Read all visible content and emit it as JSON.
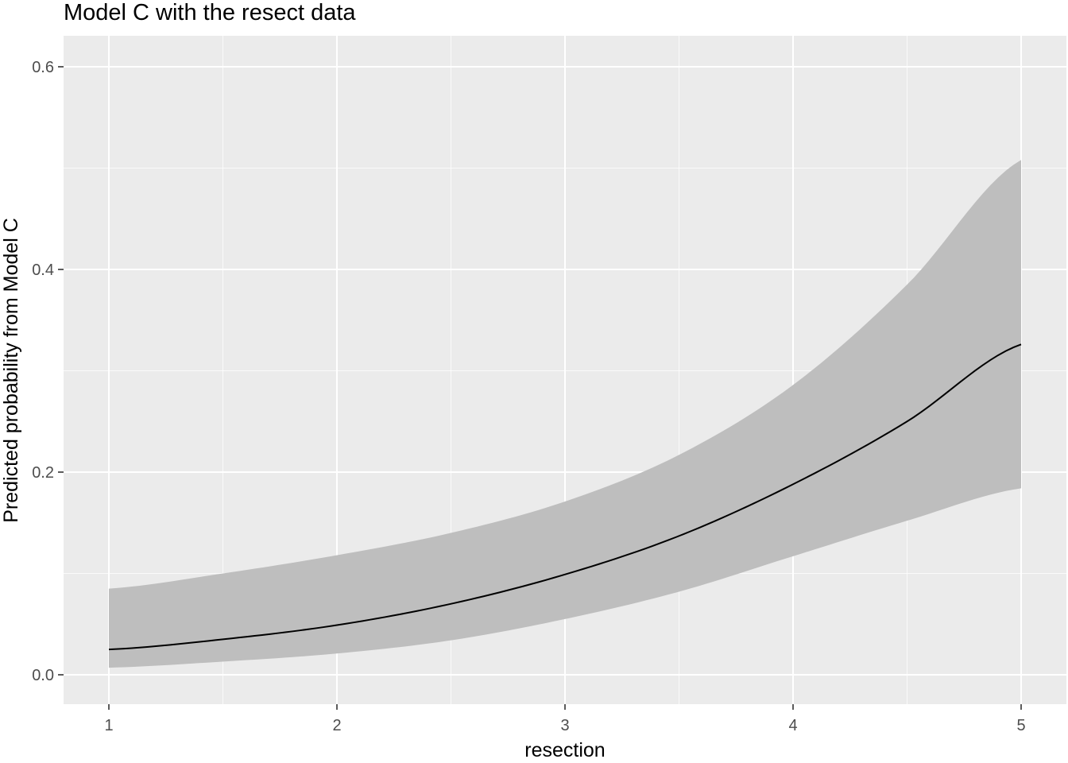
{
  "chart_data": {
    "type": "line",
    "title": "Model C with the resect data",
    "xlabel": "resection",
    "ylabel": "Predicted probability from Model C",
    "xlim": [
      0.8,
      5.0
    ],
    "ylim": [
      -0.028,
      0.628
    ],
    "x_ticks": [
      1,
      2,
      3,
      4,
      5
    ],
    "x_tick_labels": [
      "1",
      "2",
      "3",
      "4",
      "5"
    ],
    "x_minor_ticks": [
      1.5,
      2.5,
      3.5,
      4.5
    ],
    "y_ticks": [
      0.0,
      0.2,
      0.4,
      0.6
    ],
    "y_tick_labels": [
      "0.0",
      "0.2",
      "0.4",
      "0.6"
    ],
    "y_minor_ticks": [
      0.1,
      0.3,
      0.5
    ],
    "grid": true,
    "panel_background": "#ebebeb",
    "ribbon_color": "#bebebe",
    "line_color": "#000000",
    "series": [
      {
        "x": [
          1.0,
          1.5,
          2.0,
          2.5,
          3.0,
          3.5,
          4.0,
          4.5,
          5.0
        ],
        "fit": [
          0.025,
          0.035,
          0.049,
          0.07,
          0.099,
          0.137,
          0.188,
          0.25,
          0.326
        ],
        "lower": [
          0.007,
          0.013,
          0.021,
          0.034,
          0.055,
          0.082,
          0.117,
          0.152,
          0.184
        ],
        "upper": [
          0.085,
          0.1,
          0.118,
          0.14,
          0.171,
          0.217,
          0.286,
          0.385,
          0.508
        ]
      }
    ]
  }
}
